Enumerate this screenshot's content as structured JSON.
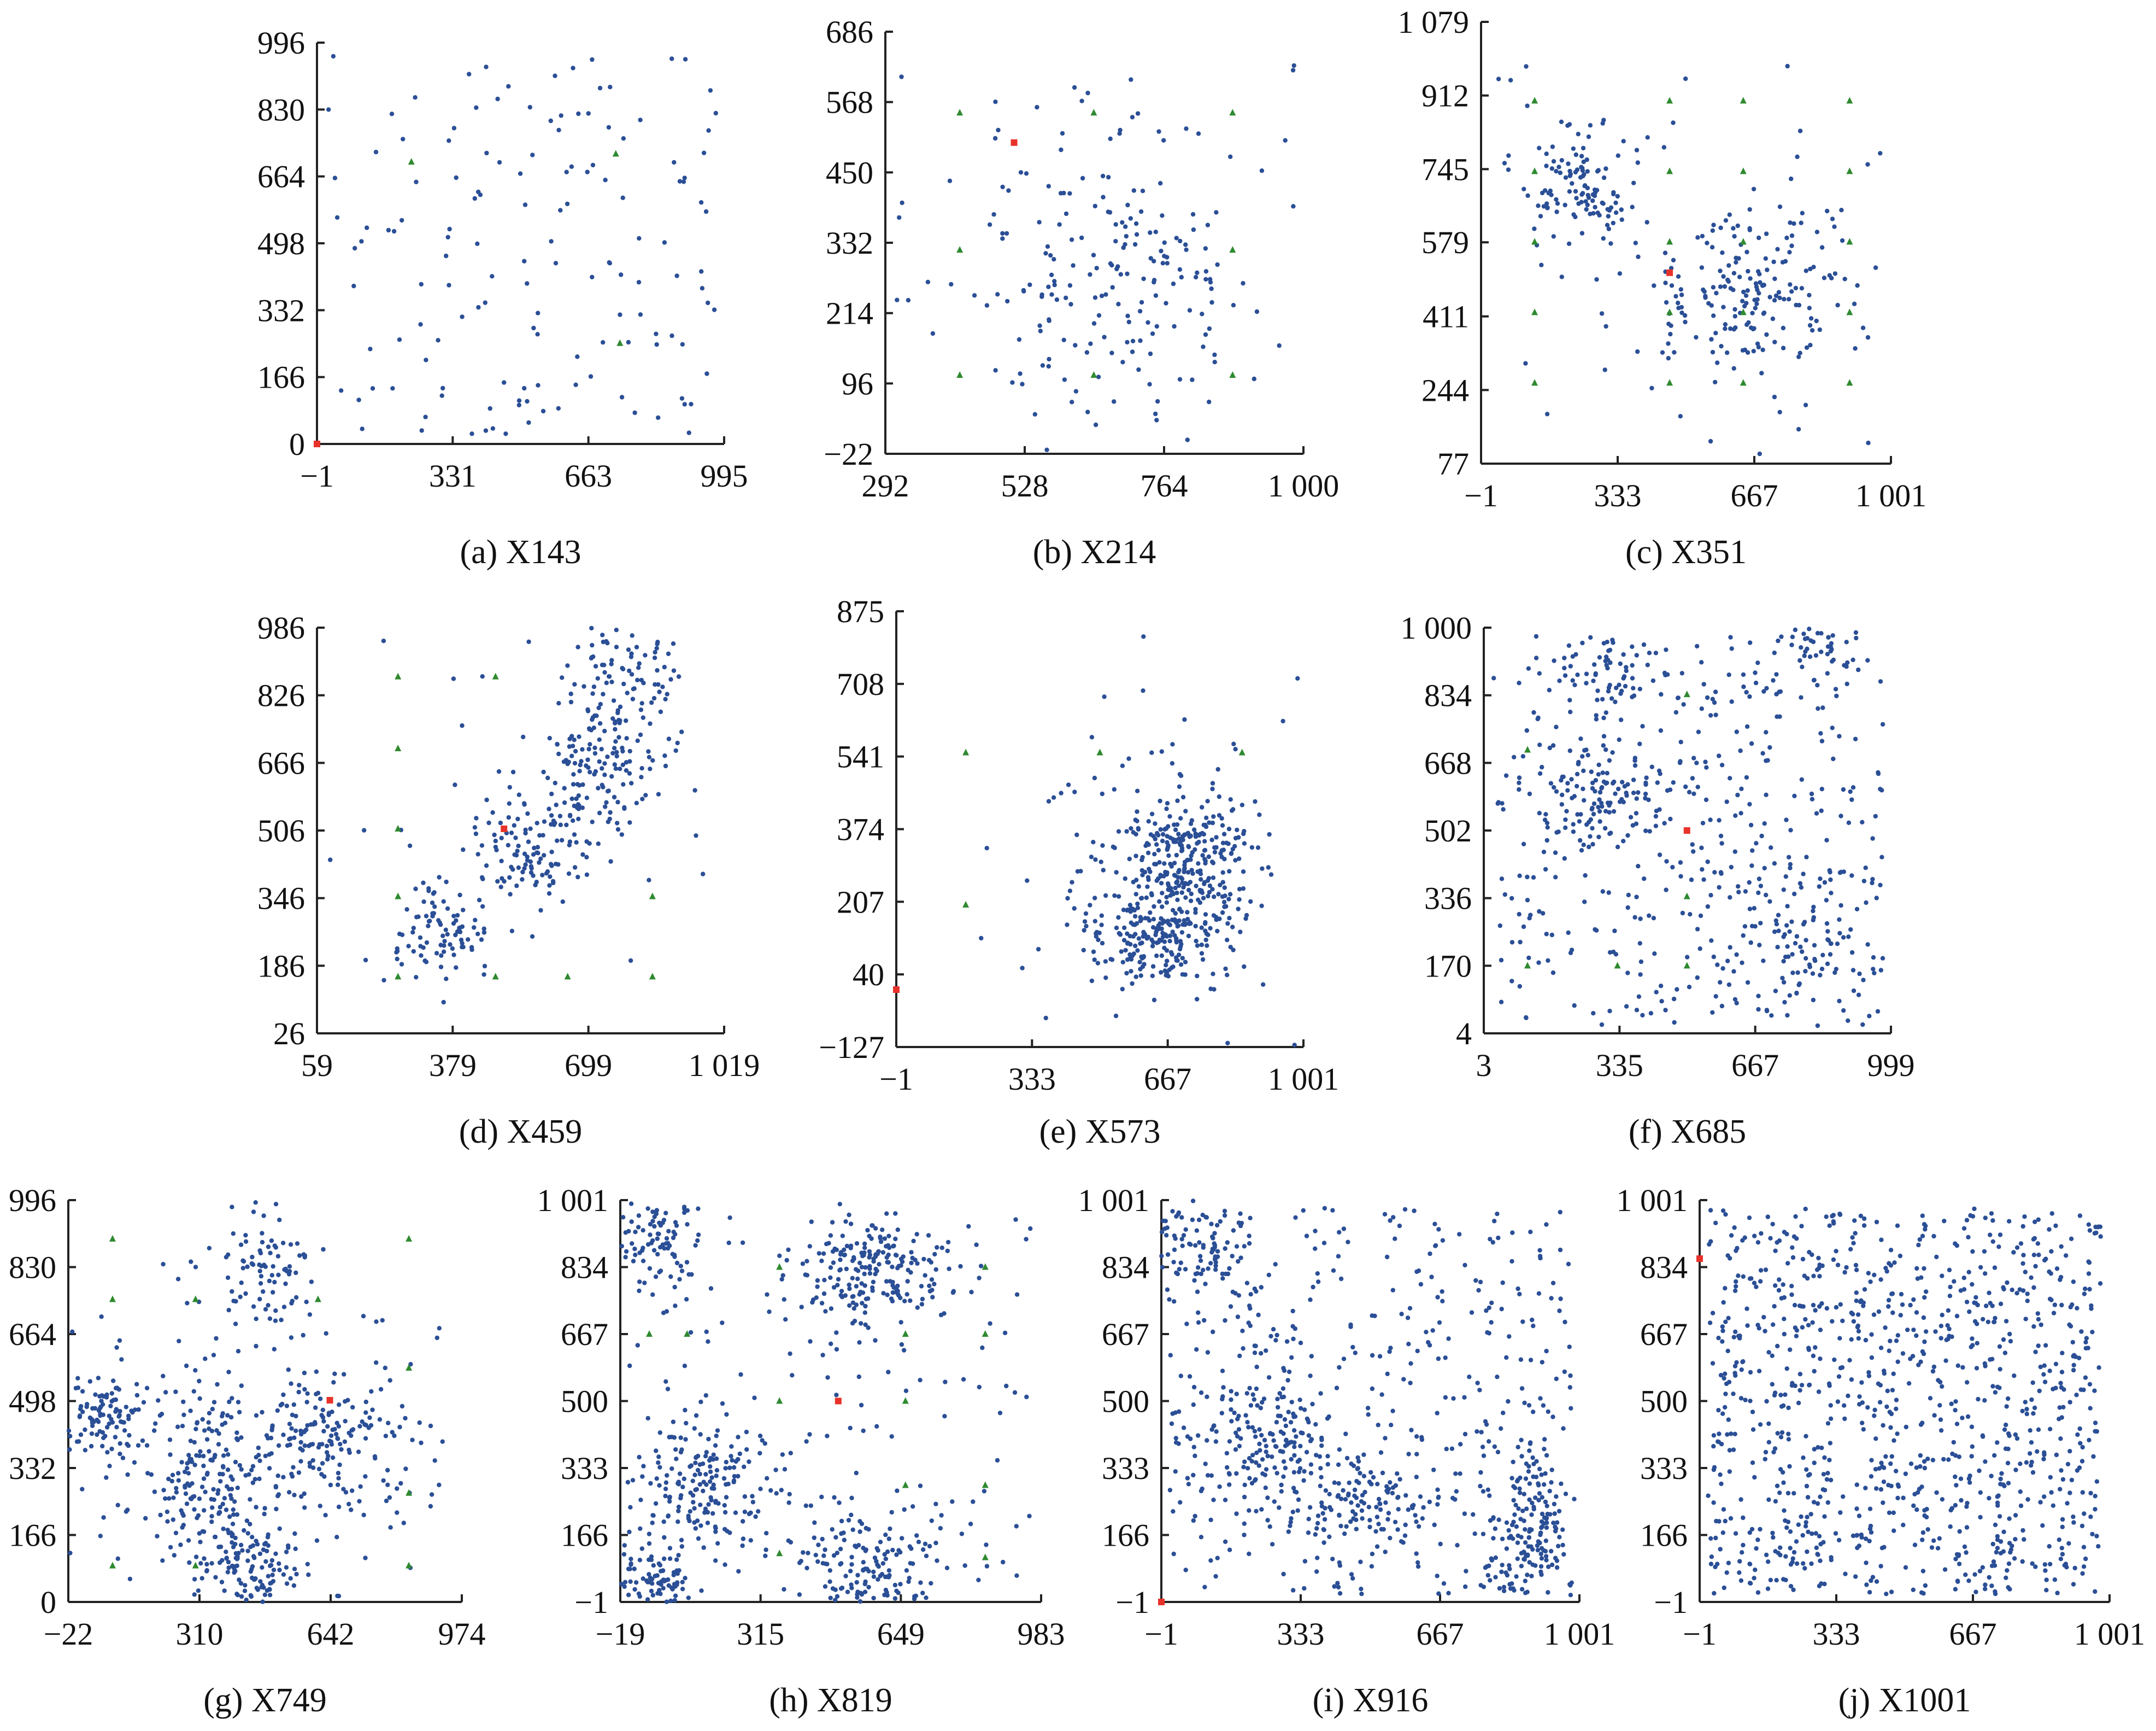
{
  "colors": {
    "points": "#2b4f96",
    "depot": "#e8322a",
    "facility": "#2f8a2f",
    "axis": "#222222"
  },
  "chart_data": [
    {
      "id": "a",
      "type": "scatter",
      "caption": "(a) X143",
      "xlim": [
        -1,
        995
      ],
      "ylim": [
        0,
        996
      ],
      "xticks": [
        -1,
        331,
        663,
        995
      ],
      "xtick_labels": [
        "−1",
        "331",
        "663",
        "995"
      ],
      "yticks": [
        0,
        166,
        332,
        498,
        664,
        830,
        996
      ],
      "ytick_labels": [
        "0",
        "166",
        "332",
        "498",
        "664",
        "830",
        "996"
      ],
      "n_points": 142,
      "clusters": [
        {
          "cx": 500,
          "cy": 500,
          "sx": 500,
          "sy": 500,
          "w": 1.0,
          "uniform": true
        }
      ],
      "depots": [
        [
          -1,
          0
        ]
      ],
      "facilities": [
        [
          230,
          700
        ],
        [
          730,
          720
        ],
        [
          740,
          250
        ]
      ]
    },
    {
      "id": "b",
      "type": "scatter",
      "caption": "(b) X214",
      "xlim": [
        292,
        1000
      ],
      "ylim": [
        -22,
        686
      ],
      "xticks": [
        292,
        528,
        764,
        1000
      ],
      "xtick_labels": [
        "292",
        "528",
        "764",
        "1 000"
      ],
      "yticks": [
        -22,
        96,
        214,
        332,
        450,
        568,
        686
      ],
      "ytick_labels": [
        "−22",
        "96",
        "214",
        "332",
        "450",
        "568",
        "686"
      ],
      "n_points": 213,
      "clusters": [
        {
          "cx": 680,
          "cy": 300,
          "sx": 120,
          "sy": 130,
          "w": 0.85
        },
        {
          "cx": 600,
          "cy": 300,
          "sx": 300,
          "sy": 300,
          "w": 0.15,
          "uniform": true
        }
      ],
      "depots": [
        [
          510,
          500
        ]
      ],
      "facilities": [
        [
          418,
          550
        ],
        [
          418,
          320
        ],
        [
          418,
          110
        ],
        [
          645,
          550
        ],
        [
          645,
          110
        ],
        [
          880,
          550
        ],
        [
          880,
          320
        ],
        [
          880,
          110
        ]
      ]
    },
    {
      "id": "c",
      "type": "scatter",
      "caption": "(c) X351",
      "xlim": [
        -1,
        1001
      ],
      "ylim": [
        77,
        1079
      ],
      "xticks": [
        -1,
        333,
        667,
        1001
      ],
      "xtick_labels": [
        "−1",
        "333",
        "667",
        "1 001"
      ],
      "yticks": [
        77,
        244,
        411,
        579,
        745,
        912,
        1079
      ],
      "ytick_labels": [
        "77",
        "244",
        "411",
        "579",
        "745",
        "912",
        "1 079"
      ],
      "n_points": 350,
      "clusters": [
        {
          "cx": 250,
          "cy": 700,
          "sx": 70,
          "sy": 70,
          "w": 0.35
        },
        {
          "cx": 650,
          "cy": 470,
          "sx": 140,
          "sy": 90,
          "w": 0.55
        },
        {
          "cx": 500,
          "cy": 600,
          "sx": 450,
          "sy": 400,
          "w": 0.1,
          "uniform": true
        }
      ],
      "depots": [
        [
          460,
          510
        ]
      ],
      "facilities": [
        [
          130,
          900
        ],
        [
          130,
          740
        ],
        [
          130,
          580
        ],
        [
          130,
          420
        ],
        [
          130,
          260
        ],
        [
          460,
          900
        ],
        [
          460,
          740
        ],
        [
          460,
          580
        ],
        [
          460,
          420
        ],
        [
          460,
          260
        ],
        [
          640,
          900
        ],
        [
          640,
          740
        ],
        [
          640,
          580
        ],
        [
          640,
          420
        ],
        [
          640,
          260
        ],
        [
          900,
          900
        ],
        [
          900,
          740
        ],
        [
          900,
          580
        ],
        [
          900,
          420
        ],
        [
          900,
          260
        ]
      ]
    },
    {
      "id": "d",
      "type": "scatter",
      "caption": "(d) X459",
      "xlim": [
        59,
        1019
      ],
      "ylim": [
        26,
        986
      ],
      "xticks": [
        59,
        379,
        699,
        1019
      ],
      "xtick_labels": [
        "59",
        "379",
        "699",
        "1 019"
      ],
      "yticks": [
        26,
        186,
        346,
        506,
        666,
        826,
        986
      ],
      "ytick_labels": [
        "26",
        "186",
        "346",
        "506",
        "666",
        "826",
        "986"
      ],
      "n_points": 458,
      "clusters": [
        {
          "cx": 360,
          "cy": 260,
          "sx": 60,
          "sy": 60,
          "w": 0.2
        },
        {
          "cx": 560,
          "cy": 460,
          "sx": 70,
          "sy": 70,
          "w": 0.25
        },
        {
          "cx": 720,
          "cy": 650,
          "sx": 70,
          "sy": 80,
          "w": 0.3
        },
        {
          "cx": 800,
          "cy": 870,
          "sx": 60,
          "sy": 70,
          "w": 0.2
        },
        {
          "cx": 550,
          "cy": 500,
          "sx": 400,
          "sy": 400,
          "w": 0.05,
          "uniform": true
        }
      ],
      "depots": [
        [
          500,
          510
        ]
      ],
      "facilities": [
        [
          250,
          870
        ],
        [
          250,
          700
        ],
        [
          250,
          510
        ],
        [
          250,
          350
        ],
        [
          250,
          160
        ],
        [
          480,
          870
        ],
        [
          480,
          160
        ],
        [
          650,
          160
        ],
        [
          850,
          350
        ],
        [
          850,
          160
        ]
      ]
    },
    {
      "id": "e",
      "type": "scatter",
      "caption": "(e) X573",
      "xlim": [
        -1,
        1001
      ],
      "ylim": [
        -127,
        875
      ],
      "xticks": [
        -1,
        333,
        667,
        1001
      ],
      "xtick_labels": [
        "−1",
        "333",
        "667",
        "1 001"
      ],
      "yticks": [
        -127,
        40,
        207,
        374,
        541,
        708,
        875
      ],
      "ytick_labels": [
        "−127",
        "40",
        "207",
        "374",
        "541",
        "708",
        "875"
      ],
      "n_points": 572,
      "clusters": [
        {
          "cx": 720,
          "cy": 300,
          "sx": 80,
          "sy": 80,
          "w": 0.5
        },
        {
          "cx": 630,
          "cy": 120,
          "sx": 80,
          "sy": 60,
          "w": 0.35
        },
        {
          "cx": 650,
          "cy": 250,
          "sx": 200,
          "sy": 250,
          "w": 0.15
        }
      ],
      "depots": [
        [
          -1,
          5
        ]
      ],
      "facilities": [
        [
          170,
          550
        ],
        [
          170,
          200
        ],
        [
          500,
          550
        ],
        [
          850,
          550
        ]
      ]
    },
    {
      "id": "f",
      "type": "scatter",
      "caption": "(f) X685",
      "xlim": [
        3,
        999
      ],
      "ylim": [
        4,
        1000
      ],
      "xticks": [
        3,
        335,
        667,
        999
      ],
      "xtick_labels": [
        "3",
        "335",
        "667",
        "999"
      ],
      "yticks": [
        4,
        170,
        336,
        502,
        668,
        834,
        1000
      ],
      "ytick_labels": [
        "4",
        "170",
        "336",
        "502",
        "668",
        "834",
        "1 000"
      ],
      "n_points": 684,
      "clusters": [
        {
          "cx": 280,
          "cy": 580,
          "sx": 70,
          "sy": 70,
          "w": 0.15
        },
        {
          "cx": 300,
          "cy": 900,
          "sx": 60,
          "sy": 50,
          "w": 0.08
        },
        {
          "cx": 820,
          "cy": 960,
          "sx": 50,
          "sy": 30,
          "w": 0.06
        },
        {
          "cx": 780,
          "cy": 230,
          "sx": 70,
          "sy": 100,
          "w": 0.1
        },
        {
          "cx": 500,
          "cy": 500,
          "sx": 500,
          "sy": 500,
          "w": 0.61,
          "uniform": true
        }
      ],
      "depots": [
        [
          500,
          502
        ]
      ],
      "facilities": [
        [
          110,
          700
        ],
        [
          110,
          170
        ],
        [
          500,
          836
        ],
        [
          500,
          340
        ],
        [
          500,
          170
        ],
        [
          330,
          170
        ]
      ]
    },
    {
      "id": "g",
      "type": "scatter",
      "caption": "(g) X749",
      "xlim": [
        -22,
        974
      ],
      "ylim": [
        0,
        996
      ],
      "xticks": [
        -22,
        310,
        642,
        974
      ],
      "xtick_labels": [
        "−22",
        "310",
        "642",
        "974"
      ],
      "yticks": [
        0,
        166,
        332,
        498,
        664,
        830,
        996
      ],
      "ytick_labels": [
        "0",
        "166",
        "332",
        "498",
        "664",
        "830",
        "996"
      ],
      "n_points": 748,
      "clusters": [
        {
          "cx": 80,
          "cy": 460,
          "sx": 50,
          "sy": 50,
          "w": 0.12
        },
        {
          "cx": 340,
          "cy": 280,
          "sx": 60,
          "sy": 100,
          "w": 0.2
        },
        {
          "cx": 450,
          "cy": 80,
          "sx": 60,
          "sy": 60,
          "w": 0.12
        },
        {
          "cx": 480,
          "cy": 830,
          "sx": 60,
          "sy": 70,
          "w": 0.1
        },
        {
          "cx": 650,
          "cy": 420,
          "sx": 100,
          "sy": 60,
          "w": 0.15
        },
        {
          "cx": 450,
          "cy": 380,
          "sx": 250,
          "sy": 180,
          "w": 0.31
        }
      ],
      "depots": [
        [
          640,
          500
        ]
      ],
      "facilities": [
        [
          90,
          900
        ],
        [
          90,
          750
        ],
        [
          90,
          90
        ],
        [
          300,
          750
        ],
        [
          300,
          90
        ],
        [
          610,
          750
        ],
        [
          840,
          900
        ],
        [
          840,
          580
        ],
        [
          840,
          270
        ],
        [
          840,
          90
        ]
      ]
    },
    {
      "id": "h",
      "type": "scatter",
      "caption": "(h) X819",
      "xlim": [
        -19,
        983
      ],
      "ylim": [
        -1,
        1001
      ],
      "xticks": [
        -19,
        315,
        649,
        983
      ],
      "xtick_labels": [
        "−19",
        "315",
        "649",
        "983"
      ],
      "yticks": [
        -1,
        166,
        333,
        500,
        667,
        834,
        1001
      ],
      "ytick_labels": [
        "−1",
        "166",
        "333",
        "500",
        "667",
        "834",
        "1 001"
      ],
      "n_points": 818,
      "clusters": [
        {
          "cx": 60,
          "cy": 900,
          "sx": 50,
          "sy": 60,
          "w": 0.12
        },
        {
          "cx": 580,
          "cy": 820,
          "sx": 90,
          "sy": 70,
          "w": 0.25
        },
        {
          "cx": 180,
          "cy": 290,
          "sx": 90,
          "sy": 80,
          "w": 0.18
        },
        {
          "cx": 60,
          "cy": 60,
          "sx": 50,
          "sy": 50,
          "w": 0.1
        },
        {
          "cx": 580,
          "cy": 100,
          "sx": 80,
          "sy": 70,
          "w": 0.18
        },
        {
          "cx": 450,
          "cy": 500,
          "sx": 450,
          "sy": 450,
          "w": 0.17,
          "uniform": true
        }
      ],
      "depots": [
        [
          500,
          500
        ]
      ],
      "facilities": [
        [
          50,
          667
        ],
        [
          140,
          667
        ],
        [
          360,
          834
        ],
        [
          360,
          500
        ],
        [
          360,
          120
        ],
        [
          660,
          667
        ],
        [
          660,
          500
        ],
        [
          660,
          290
        ],
        [
          850,
          834
        ],
        [
          850,
          667
        ],
        [
          850,
          290
        ],
        [
          850,
          110
        ]
      ]
    },
    {
      "id": "i",
      "type": "scatter",
      "caption": "(i) X916",
      "xlim": [
        -1,
        1001
      ],
      "ylim": [
        -1,
        1001
      ],
      "xticks": [
        -1,
        333,
        667,
        1001
      ],
      "xtick_labels": [
        "−1",
        "333",
        "667",
        "1 001"
      ],
      "yticks": [
        -1,
        166,
        333,
        500,
        667,
        834,
        1001
      ],
      "ytick_labels": [
        "−1",
        "166",
        "333",
        "500",
        "667",
        "834",
        "1 001"
      ],
      "n_points": 915,
      "clusters": [
        {
          "cx": 100,
          "cy": 880,
          "sx": 70,
          "sy": 70,
          "w": 0.12
        },
        {
          "cx": 270,
          "cy": 400,
          "sx": 70,
          "sy": 70,
          "w": 0.12
        },
        {
          "cx": 480,
          "cy": 240,
          "sx": 80,
          "sy": 60,
          "w": 0.1
        },
        {
          "cx": 880,
          "cy": 100,
          "sx": 60,
          "sy": 60,
          "w": 0.1
        },
        {
          "cx": 900,
          "cy": 260,
          "sx": 50,
          "sy": 60,
          "w": 0.08
        },
        {
          "cx": 500,
          "cy": 500,
          "sx": 500,
          "sy": 500,
          "w": 0.48,
          "uniform": true
        }
      ],
      "depots": [
        [
          -1,
          -1
        ]
      ],
      "facilities": []
    },
    {
      "id": "j",
      "type": "scatter",
      "caption": "(j) X1001",
      "xlim": [
        -1,
        1001
      ],
      "ylim": [
        -1,
        1001
      ],
      "xticks": [
        -1,
        333,
        667,
        1001
      ],
      "xtick_labels": [
        "−1",
        "333",
        "667",
        "1 001"
      ],
      "yticks": [
        -1,
        166,
        333,
        500,
        667,
        834,
        1001
      ],
      "ytick_labels": [
        "−1",
        "166",
        "333",
        "500",
        "667",
        "834",
        "1 001"
      ],
      "n_points": 1000,
      "clusters": [
        {
          "cx": 500,
          "cy": 500,
          "sx": 500,
          "sy": 500,
          "w": 1.0,
          "uniform": true
        }
      ],
      "depots": [
        [
          -1,
          855
        ]
      ],
      "facilities": []
    }
  ]
}
